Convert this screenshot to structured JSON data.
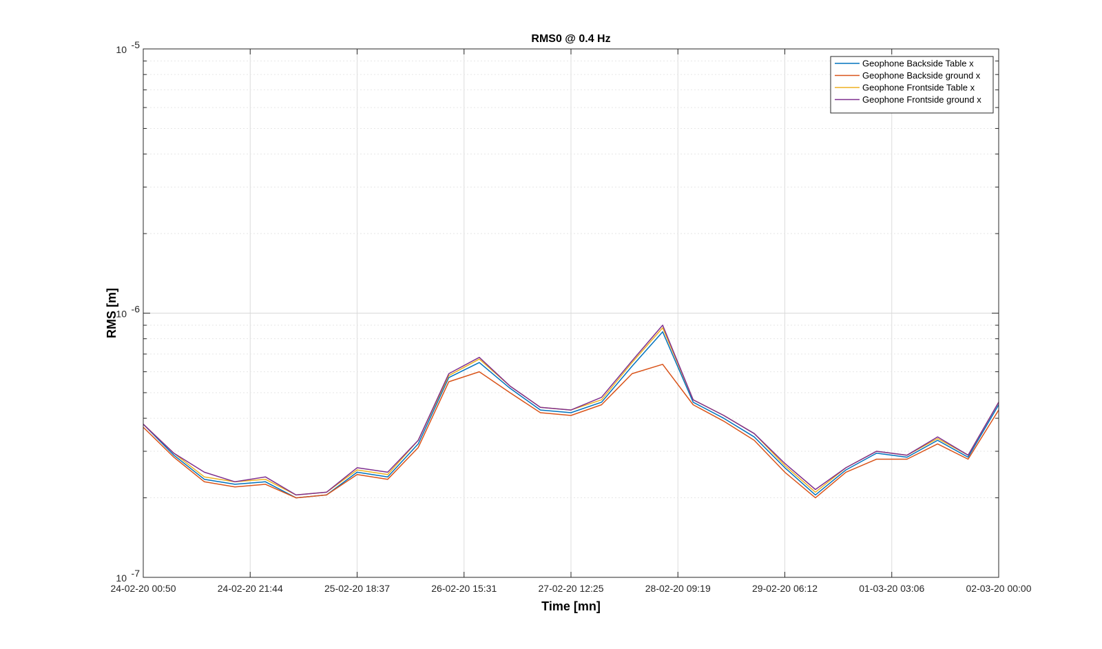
{
  "chart_data": {
    "type": "line",
    "title": "RMS0 @ 0.4 Hz",
    "xlabel": "Time [mn]",
    "ylabel": "RMS [m]",
    "yscale": "log",
    "ylim": [
      1e-07,
      1e-05
    ],
    "ytick_labels": [
      {
        "value": 1e-05,
        "base": "10",
        "exp": "-5"
      },
      {
        "value": 1e-06,
        "base": "10",
        "exp": "-6"
      },
      {
        "value": 1e-07,
        "base": "10",
        "exp": "-7"
      }
    ],
    "xlim": [
      "2020-02-24 00:50",
      "2020-03-02 00:00"
    ],
    "xtick_labels": [
      "24-02-20 00:50",
      "24-02-20 21:44",
      "25-02-20 18:37",
      "26-02-20 15:31",
      "27-02-20 12:25",
      "28-02-20 09:19",
      "29-02-20 06:12",
      "01-03-20 03:06",
      "02-03-20 00:00"
    ],
    "grid": true,
    "legend_position": "top-right",
    "x_note": "x values are fractional days since 2020-02-24 00:50",
    "series": [
      {
        "name": "Geophone Backside Table x",
        "color": "#0072BD",
        "x": [
          0,
          0.25,
          0.5,
          0.75,
          1,
          1.25,
          1.5,
          1.75,
          2,
          2.25,
          2.5,
          2.75,
          3,
          3.25,
          3.5,
          3.75,
          4,
          4.25,
          4.5,
          4.75,
          5,
          5.25,
          5.5,
          5.75,
          6,
          6.25,
          6.5,
          6.75,
          7
        ],
        "y": [
          3.8e-07,
          2.9e-07,
          2.35e-07,
          2.25e-07,
          2.3e-07,
          2e-07,
          2.05e-07,
          2.5e-07,
          2.4e-07,
          3.2e-07,
          5.7e-07,
          6.5e-07,
          5.2e-07,
          4.3e-07,
          4.2e-07,
          4.6e-07,
          6.3e-07,
          8.5e-07,
          4.6e-07,
          4e-07,
          3.4e-07,
          2.6e-07,
          2.05e-07,
          2.55e-07,
          2.95e-07,
          2.85e-07,
          3.3e-07,
          2.85e-07,
          4.5e-07
        ]
      },
      {
        "name": "Geophone Backside ground x",
        "color": "#D95319",
        "x": [
          0,
          0.25,
          0.5,
          0.75,
          1,
          1.25,
          1.5,
          1.75,
          2,
          2.25,
          2.5,
          2.75,
          3,
          3.25,
          3.5,
          3.75,
          4,
          4.25,
          4.5,
          4.75,
          5,
          5.25,
          5.5,
          5.75,
          6,
          6.25,
          6.5,
          6.75,
          7
        ],
        "y": [
          3.7e-07,
          2.85e-07,
          2.3e-07,
          2.2e-07,
          2.25e-07,
          2e-07,
          2.05e-07,
          2.45e-07,
          2.35e-07,
          3.1e-07,
          5.5e-07,
          6e-07,
          5e-07,
          4.2e-07,
          4.1e-07,
          4.5e-07,
          5.9e-07,
          6.4e-07,
          4.5e-07,
          3.9e-07,
          3.3e-07,
          2.5e-07,
          2e-07,
          2.5e-07,
          2.8e-07,
          2.8e-07,
          3.2e-07,
          2.8e-07,
          4.3e-07
        ]
      },
      {
        "name": "Geophone Frontside Table x",
        "color": "#EDB120",
        "x": [
          0,
          0.25,
          0.5,
          0.75,
          1,
          1.25,
          1.5,
          1.75,
          2,
          2.25,
          2.5,
          2.75,
          3,
          3.25,
          3.5,
          3.75,
          4,
          4.25,
          4.5,
          4.75,
          5,
          5.25,
          5.5,
          5.75,
          6,
          6.25,
          6.5,
          6.75,
          7
        ],
        "y": [
          3.8e-07,
          2.95e-07,
          2.4e-07,
          2.3e-07,
          2.35e-07,
          2.05e-07,
          2.1e-07,
          2.55e-07,
          2.45e-07,
          3.3e-07,
          5.8e-07,
          6.7e-07,
          5.3e-07,
          4.4e-07,
          4.3e-07,
          4.7e-07,
          6.5e-07,
          8.8e-07,
          4.7e-07,
          4.1e-07,
          3.5e-07,
          2.65e-07,
          2.1e-07,
          2.6e-07,
          3e-07,
          2.9e-07,
          3.35e-07,
          2.9e-07,
          4.6e-07
        ]
      },
      {
        "name": "Geophone Frontside ground x",
        "color": "#7E2F8E",
        "x": [
          0,
          0.25,
          0.5,
          0.75,
          1,
          1.25,
          1.5,
          1.75,
          2,
          2.25,
          2.5,
          2.75,
          3,
          3.25,
          3.5,
          3.75,
          4,
          4.25,
          4.5,
          4.75,
          5,
          5.25,
          5.5,
          5.75,
          6,
          6.25,
          6.5,
          6.75,
          7
        ],
        "y": [
          3.8e-07,
          2.95e-07,
          2.5e-07,
          2.3e-07,
          2.4e-07,
          2.05e-07,
          2.1e-07,
          2.6e-07,
          2.5e-07,
          3.3e-07,
          5.9e-07,
          6.8e-07,
          5.3e-07,
          4.4e-07,
          4.3e-07,
          4.8e-07,
          6.6e-07,
          9e-07,
          4.7e-07,
          4.1e-07,
          3.5e-07,
          2.7e-07,
          2.15e-07,
          2.6e-07,
          3e-07,
          2.9e-07,
          3.4e-07,
          2.9e-07,
          4.6e-07
        ]
      }
    ],
    "annotations": []
  }
}
